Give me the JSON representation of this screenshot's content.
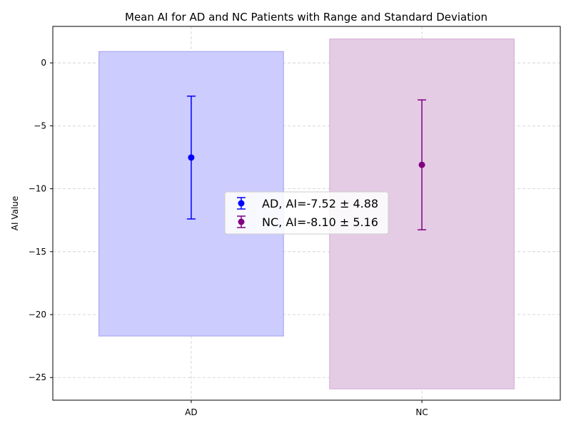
{
  "chart_data": {
    "type": "scatter",
    "title": "Mean AI for AD and NC Patients with Range and Standard Deviation",
    "xlabel": "",
    "ylabel": "AI Value",
    "categories": [
      "AD",
      "NC"
    ],
    "ylim": [
      -26.8,
      2.9
    ],
    "yticks": [
      0,
      -5,
      -10,
      -15,
      -20,
      -25
    ],
    "ytick_labels": [
      "0",
      "−5",
      "−10",
      "−15",
      "−20",
      "−25"
    ],
    "grid": true,
    "legend_position": "center",
    "series": [
      {
        "name": "AD, AI=-7.52 ± 4.88",
        "category": "AD",
        "mean": -7.52,
        "std": 4.88,
        "range": [
          -21.7,
          0.9
        ],
        "color": "#0000ff",
        "range_fill": "#ccccff",
        "range_edge": "#a9a9f2"
      },
      {
        "name": "NC, AI=-8.10 ± 5.16",
        "category": "NC",
        "mean": -8.1,
        "std": 5.16,
        "range": [
          -25.9,
          1.9
        ],
        "color": "#800080",
        "range_fill": "#e5cce5",
        "range_edge": "#d6b3d6"
      }
    ]
  }
}
